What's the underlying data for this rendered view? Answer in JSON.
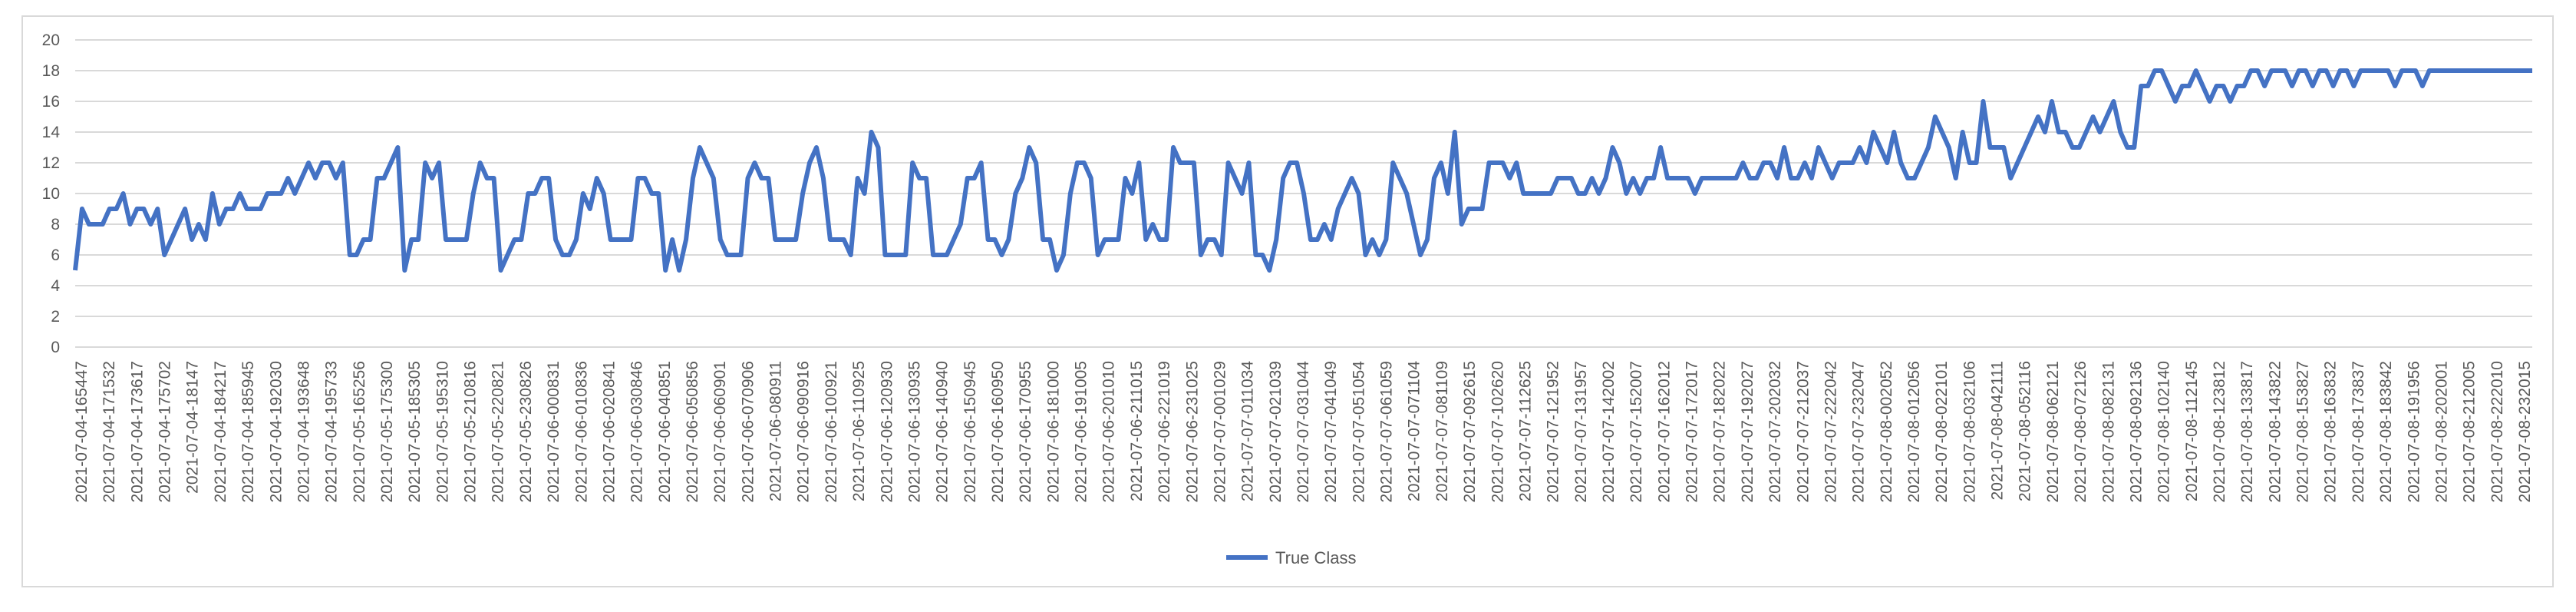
{
  "chart_data": {
    "type": "line",
    "title": "",
    "xlabel": "",
    "ylabel": "",
    "ylim": [
      0,
      20
    ],
    "yticks": [
      0,
      2,
      4,
      6,
      8,
      10,
      12,
      14,
      16,
      18,
      20
    ],
    "grid": true,
    "legend_position": "bottom",
    "series": [
      {
        "name": "True Class",
        "color": "#4472C4",
        "values": [
          5,
          9,
          8,
          8,
          8,
          9,
          9,
          10,
          8,
          9,
          9,
          8,
          9,
          6,
          7,
          8,
          9,
          7,
          8,
          7,
          10,
          8,
          9,
          9,
          10,
          9,
          9,
          9,
          10,
          10,
          10,
          11,
          10,
          11,
          12,
          11,
          12,
          12,
          11,
          12,
          6,
          6,
          7,
          7,
          11,
          11,
          12,
          13,
          5,
          7,
          7,
          12,
          11,
          12,
          7,
          7,
          7,
          7,
          10,
          12,
          11,
          11,
          5,
          6,
          7,
          7,
          10,
          10,
          11,
          11,
          7,
          6,
          6,
          7,
          10,
          9,
          11,
          10,
          7,
          7,
          7,
          7,
          11,
          11,
          10,
          10,
          5,
          7,
          5,
          7,
          11,
          13,
          12,
          11,
          7,
          6,
          6,
          6,
          11,
          12,
          11,
          11,
          7,
          7,
          7,
          7,
          10,
          12,
          13,
          11,
          7,
          7,
          7,
          6,
          11,
          10,
          14,
          13,
          6,
          6,
          6,
          6,
          12,
          11,
          11,
          6,
          6,
          6,
          7,
          8,
          11,
          11,
          12,
          7,
          7,
          6,
          7,
          10,
          11,
          13,
          12,
          7,
          7,
          5,
          6,
          10,
          12,
          12,
          11,
          6,
          7,
          7,
          7,
          11,
          10,
          12,
          7,
          8,
          7,
          7,
          13,
          12,
          12,
          12,
          6,
          7,
          7,
          6,
          12,
          11,
          10,
          12,
          6,
          6,
          5,
          7,
          11,
          12,
          12,
          10,
          7,
          7,
          8,
          7,
          9,
          10,
          11,
          10,
          6,
          7,
          6,
          7,
          12,
          11,
          10,
          8,
          6,
          7,
          11,
          12,
          10,
          14,
          8,
          9,
          9,
          9,
          12,
          12,
          12,
          11,
          12,
          10,
          10,
          10,
          10,
          10,
          11,
          11,
          11,
          10,
          10,
          11,
          10,
          11,
          13,
          12,
          10,
          11,
          10,
          11,
          11,
          13,
          11,
          11,
          11,
          11,
          10,
          11,
          11,
          11,
          11,
          11,
          11,
          12,
          11,
          11,
          12,
          12,
          11,
          13,
          11,
          11,
          12,
          11,
          13,
          12,
          11,
          12,
          12,
          12,
          13,
          12,
          14,
          13,
          12,
          14,
          12,
          11,
          11,
          12,
          13,
          15,
          14,
          13,
          11,
          14,
          12,
          12,
          16,
          13,
          13,
          13,
          11,
          12,
          13,
          14,
          15,
          14,
          16,
          14,
          14,
          13,
          13,
          14,
          15,
          14,
          15,
          16,
          14,
          13,
          13,
          17,
          17,
          18,
          18,
          17,
          16,
          17,
          17,
          18,
          17,
          16,
          17,
          17,
          16,
          17,
          17,
          18,
          18,
          17,
          18,
          18,
          18,
          17,
          18,
          18,
          17,
          18,
          18,
          17,
          18,
          18,
          17,
          18,
          18,
          18,
          18,
          18,
          17,
          18,
          18,
          18,
          17,
          18,
          18,
          18,
          18,
          18,
          18,
          18,
          18,
          18,
          18,
          18,
          18,
          18,
          18,
          18,
          18
        ]
      }
    ],
    "x_tick_labels": [
      "2021-07-04-165447",
      "2021-07-04-171532",
      "2021-07-04-173617",
      "2021-07-04-175702",
      "2021-07-04-18147",
      "2021-07-04-184217",
      "2021-07-04-185945",
      "2021-07-04-192030",
      "2021-07-04-193648",
      "2021-07-04-195733",
      "2021-07-05-165256",
      "2021-07-05-175300",
      "2021-07-05-185305",
      "2021-07-05-195310",
      "2021-07-05-210816",
      "2021-07-05-220821",
      "2021-07-05-230826",
      "2021-07-06-000831",
      "2021-07-06-010836",
      "2021-07-06-020841",
      "2021-07-06-030846",
      "2021-07-06-040851",
      "2021-07-06-050856",
      "2021-07-06-060901",
      "2021-07-06-070906",
      "2021-07-06-080911",
      "2021-07-06-090916",
      "2021-07-06-100921",
      "2021-07-06-110925",
      "2021-07-06-120930",
      "2021-07-06-130935",
      "2021-07-06-140940",
      "2021-07-06-150945",
      "2021-07-06-160950",
      "2021-07-06-170955",
      "2021-07-06-181000",
      "2021-07-06-191005",
      "2021-07-06-201010",
      "2021-07-06-211015",
      "2021-07-06-221019",
      "2021-07-06-231025",
      "2021-07-07-001029",
      "2021-07-07-011034",
      "2021-07-07-021039",
      "2021-07-07-031044",
      "2021-07-07-041049",
      "2021-07-07-051054",
      "2021-07-07-061059",
      "2021-07-07-071104",
      "2021-07-07-081109",
      "2021-07-07-092615",
      "2021-07-07-102620",
      "2021-07-07-112625",
      "2021-07-07-121952",
      "2021-07-07-131957",
      "2021-07-07-142002",
      "2021-07-07-152007",
      "2021-07-07-162012",
      "2021-07-07-172017",
      "2021-07-07-182022",
      "2021-07-07-192027",
      "2021-07-07-202032",
      "2021-07-07-212037",
      "2021-07-07-222042",
      "2021-07-07-232047",
      "2021-07-08-002052",
      "2021-07-08-012056",
      "2021-07-08-022101",
      "2021-07-08-032106",
      "2021-07-08-042111",
      "2021-07-08-052116",
      "2021-07-08-062121",
      "2021-07-08-072126",
      "2021-07-08-082131",
      "2021-07-08-092136",
      "2021-07-08-102140",
      "2021-07-08-112145",
      "2021-07-08-123812",
      "2021-07-08-133817",
      "2021-07-08-143822",
      "2021-07-08-153827",
      "2021-07-08-163832",
      "2021-07-08-173837",
      "2021-07-08-183842",
      "2021-07-08-191956",
      "2021-07-08-202001",
      "2021-07-08-212005",
      "2021-07-08-222010",
      "2021-07-08-232015"
    ]
  }
}
